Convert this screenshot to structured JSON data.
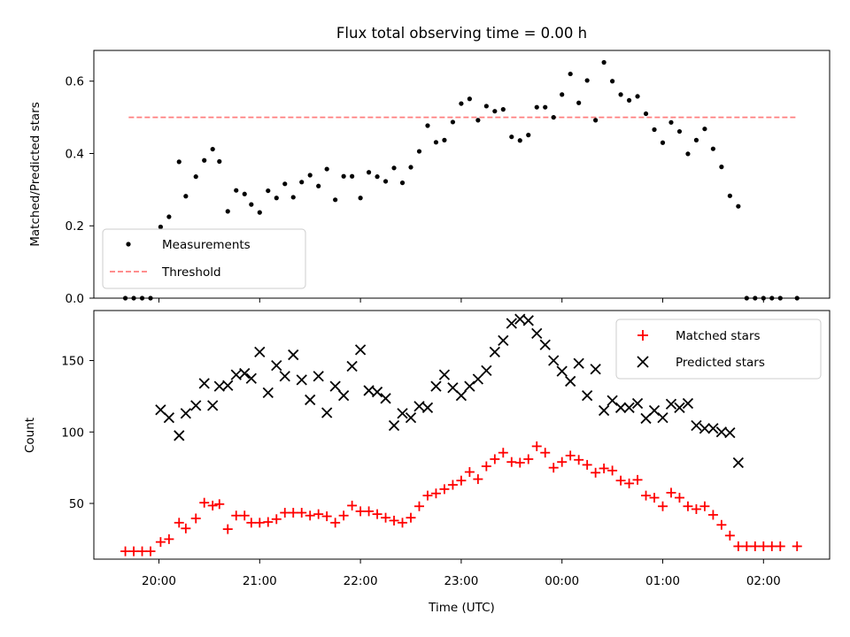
{
  "figure_title": "Flux total observing time = 0.00 h",
  "chart_data": [
    {
      "type": "scatter",
      "ylabel": "Matched/Predicted stars",
      "xlabel": "",
      "ylim": [
        0,
        0.685
      ],
      "yticks": [
        0.0,
        0.2,
        0.4,
        0.6
      ],
      "ytick_labels": [
        "0.0",
        "0.2",
        "0.4",
        "0.6"
      ],
      "grid": false,
      "legend_position": "lower-left",
      "series": [
        {
          "name": "Measurements",
          "kind": "scatter",
          "marker": "dot",
          "color": "#000000",
          "points": [
            [
              "19:40",
              0.0
            ],
            [
              "19:45",
              0.0
            ],
            [
              "19:50",
              0.0
            ],
            [
              "19:55",
              0.0
            ],
            [
              "20:01",
              0.197
            ],
            [
              "20:06",
              0.225
            ],
            [
              "20:12",
              0.377
            ],
            [
              "20:16",
              0.282
            ],
            [
              "20:22",
              0.336
            ],
            [
              "20:27",
              0.381
            ],
            [
              "20:32",
              0.412
            ],
            [
              "20:36",
              0.378
            ],
            [
              "20:41",
              0.24
            ],
            [
              "20:46",
              0.298
            ],
            [
              "20:51",
              0.288
            ],
            [
              "20:55",
              0.259
            ],
            [
              "21:00",
              0.237
            ],
            [
              "21:05",
              0.297
            ],
            [
              "21:10",
              0.277
            ],
            [
              "21:15",
              0.316
            ],
            [
              "21:20",
              0.279
            ],
            [
              "21:25",
              0.321
            ],
            [
              "21:30",
              0.34
            ],
            [
              "21:35",
              0.31
            ],
            [
              "21:40",
              0.357
            ],
            [
              "21:45",
              0.272
            ],
            [
              "21:50",
              0.337
            ],
            [
              "21:55",
              0.337
            ],
            [
              "22:00",
              0.277
            ],
            [
              "22:05",
              0.348
            ],
            [
              "22:10",
              0.336
            ],
            [
              "22:15",
              0.323
            ],
            [
              "22:20",
              0.36
            ],
            [
              "22:25",
              0.319
            ],
            [
              "22:30",
              0.362
            ],
            [
              "22:35",
              0.406
            ],
            [
              "22:40",
              0.477
            ],
            [
              "22:45",
              0.431
            ],
            [
              "22:50",
              0.437
            ],
            [
              "22:55",
              0.487
            ],
            [
              "23:00",
              0.538
            ],
            [
              "23:05",
              0.551
            ],
            [
              "23:10",
              0.492
            ],
            [
              "23:15",
              0.531
            ],
            [
              "23:20",
              0.517
            ],
            [
              "23:25",
              0.522
            ],
            [
              "23:30",
              0.446
            ],
            [
              "23:35",
              0.436
            ],
            [
              "23:40",
              0.451
            ],
            [
              "23:45",
              0.528
            ],
            [
              "23:50",
              0.528
            ],
            [
              "23:55",
              0.5
            ],
            [
              "00:00",
              0.563
            ],
            [
              "00:05",
              0.62
            ],
            [
              "00:10",
              0.54
            ],
            [
              "00:15",
              0.602
            ],
            [
              "00:20",
              0.492
            ],
            [
              "00:25",
              0.652
            ],
            [
              "00:30",
              0.6
            ],
            [
              "00:35",
              0.563
            ],
            [
              "00:40",
              0.547
            ],
            [
              "00:45",
              0.558
            ],
            [
              "00:50",
              0.51
            ],
            [
              "00:55",
              0.466
            ],
            [
              "01:00",
              0.43
            ],
            [
              "01:05",
              0.486
            ],
            [
              "01:10",
              0.461
            ],
            [
              "01:15",
              0.399
            ],
            [
              "01:20",
              0.437
            ],
            [
              "01:25",
              0.468
            ],
            [
              "01:30",
              0.413
            ],
            [
              "01:35",
              0.363
            ],
            [
              "01:40",
              0.283
            ],
            [
              "01:45",
              0.254
            ],
            [
              "01:50",
              0.0
            ],
            [
              "01:55",
              0.0
            ],
            [
              "02:00",
              0.0
            ],
            [
              "02:05",
              0.0
            ],
            [
              "02:10",
              0.0
            ],
            [
              "02:20",
              0.0
            ]
          ]
        },
        {
          "name": "Threshold",
          "kind": "line",
          "style": "dashed",
          "color": "#ff7f7f",
          "points": [
            [
              "19:42",
              0.5
            ],
            [
              "02:20",
              0.5
            ]
          ]
        }
      ]
    },
    {
      "type": "scatter",
      "ylabel": "Count",
      "xlabel": "Time (UTC)",
      "ylim": [
        11,
        185
      ],
      "yticks": [
        50,
        100,
        150
      ],
      "ytick_labels": [
        "50",
        "100",
        "150"
      ],
      "x_ticks": [
        "20:00",
        "21:00",
        "22:00",
        "23:00",
        "00:00",
        "01:00",
        "02:00"
      ],
      "grid": false,
      "legend_position": "top-right",
      "series": [
        {
          "name": "Matched stars",
          "kind": "scatter",
          "marker": "plus",
          "color": "#ff0000",
          "points": [
            [
              "19:40",
              16.5
            ],
            [
              "19:45",
              16.5
            ],
            [
              "19:50",
              16.5
            ],
            [
              "19:55",
              16.5
            ],
            [
              "20:01",
              23
            ],
            [
              "20:06",
              25
            ],
            [
              "20:12",
              36.5
            ],
            [
              "20:16",
              32.5
            ],
            [
              "20:22",
              39.5
            ],
            [
              "20:27",
              50.5
            ],
            [
              "20:32",
              48.5
            ],
            [
              "20:36",
              49.5
            ],
            [
              "20:41",
              32
            ],
            [
              "20:46",
              41.5
            ],
            [
              "20:51",
              41.5
            ],
            [
              "20:55",
              36.5
            ],
            [
              "21:00",
              36.5
            ],
            [
              "21:05",
              37
            ],
            [
              "21:10",
              39
            ],
            [
              "21:15",
              43.5
            ],
            [
              "21:20",
              43.5
            ],
            [
              "21:25",
              43.5
            ],
            [
              "21:30",
              41.5
            ],
            [
              "21:35",
              42.5
            ],
            [
              "21:40",
              41
            ],
            [
              "21:45",
              36.5
            ],
            [
              "21:50",
              41.5
            ],
            [
              "21:55",
              48.5
            ],
            [
              "22:00",
              44.5
            ],
            [
              "22:05",
              44.5
            ],
            [
              "22:10",
              42.5
            ],
            [
              "22:15",
              40
            ],
            [
              "22:20",
              38
            ],
            [
              "22:25",
              36.5
            ],
            [
              "22:30",
              40
            ],
            [
              "22:35",
              48
            ],
            [
              "22:40",
              55.5
            ],
            [
              "22:45",
              57
            ],
            [
              "22:50",
              60
            ],
            [
              "22:55",
              63
            ],
            [
              "23:00",
              66
            ],
            [
              "23:05",
              72
            ],
            [
              "23:10",
              67
            ],
            [
              "23:15",
              76
            ],
            [
              "23:20",
              81
            ],
            [
              "23:25",
              85.5
            ],
            [
              "23:30",
              79
            ],
            [
              "23:35",
              78.5
            ],
            [
              "23:40",
              81
            ],
            [
              "23:45",
              90
            ],
            [
              "23:50",
              85.5
            ],
            [
              "23:55",
              75
            ],
            [
              "00:00",
              79
            ],
            [
              "00:05",
              83.5
            ],
            [
              "00:10",
              80.5
            ],
            [
              "00:15",
              77
            ],
            [
              "00:20",
              71.5
            ],
            [
              "00:25",
              74.5
            ],
            [
              "00:30",
              73
            ],
            [
              "00:35",
              66
            ],
            [
              "00:40",
              64
            ],
            [
              "00:45",
              66.5
            ],
            [
              "00:50",
              55.5
            ],
            [
              "00:55",
              54
            ],
            [
              "01:00",
              48
            ],
            [
              "01:05",
              57.5
            ],
            [
              "01:10",
              54
            ],
            [
              "01:15",
              48
            ],
            [
              "01:20",
              46
            ],
            [
              "01:25",
              48
            ],
            [
              "01:30",
              42
            ],
            [
              "01:35",
              35
            ],
            [
              "01:40",
              27.5
            ],
            [
              "01:45",
              20
            ],
            [
              "01:50",
              20
            ],
            [
              "01:55",
              20
            ],
            [
              "02:00",
              20
            ],
            [
              "02:05",
              20
            ],
            [
              "02:10",
              20
            ],
            [
              "02:20",
              20
            ]
          ]
        },
        {
          "name": "Predicted stars",
          "kind": "scatter",
          "marker": "x",
          "color": "#000000",
          "points": [
            [
              "20:01",
              115.5
            ],
            [
              "20:06",
              110
            ],
            [
              "20:12",
              97.5
            ],
            [
              "20:16",
              113
            ],
            [
              "20:22",
              118.5
            ],
            [
              "20:27",
              134
            ],
            [
              "20:32",
              118.5
            ],
            [
              "20:36",
              132
            ],
            [
              "20:41",
              132.5
            ],
            [
              "20:46",
              140
            ],
            [
              "20:51",
              141
            ],
            [
              "20:55",
              137.5
            ],
            [
              "21:00",
              156
            ],
            [
              "21:05",
              127.5
            ],
            [
              "21:10",
              146.5
            ],
            [
              "21:15",
              139
            ],
            [
              "21:20",
              154
            ],
            [
              "21:25",
              136.5
            ],
            [
              "21:30",
              122.5
            ],
            [
              "21:35",
              139
            ],
            [
              "21:40",
              113.5
            ],
            [
              "21:45",
              132
            ],
            [
              "21:50",
              125.5
            ],
            [
              "21:55",
              146
            ],
            [
              "22:00",
              157.5
            ],
            [
              "22:05",
              129
            ],
            [
              "22:10",
              128
            ],
            [
              "22:15",
              123.5
            ],
            [
              "22:20",
              104.5
            ],
            [
              "22:25",
              113
            ],
            [
              "22:30",
              110
            ],
            [
              "22:35",
              118
            ],
            [
              "22:40",
              117
            ],
            [
              "22:45",
              132
            ],
            [
              "22:50",
              140
            ],
            [
              "22:55",
              131
            ],
            [
              "23:00",
              125.5
            ],
            [
              "23:05",
              132
            ],
            [
              "23:10",
              137
            ],
            [
              "23:15",
              143
            ],
            [
              "23:20",
              156
            ],
            [
              "23:25",
              164
            ],
            [
              "23:30",
              176
            ],
            [
              "23:35",
              179
            ],
            [
              "23:40",
              178
            ],
            [
              "23:45",
              169
            ],
            [
              "23:50",
              161
            ],
            [
              "23:55",
              150
            ],
            [
              "00:00",
              142.5
            ],
            [
              "00:05",
              135.5
            ],
            [
              "00:10",
              148
            ],
            [
              "00:15",
              125.5
            ],
            [
              "00:20",
              144
            ],
            [
              "00:25",
              115
            ],
            [
              "00:30",
              122
            ],
            [
              "00:35",
              117
            ],
            [
              "00:40",
              117
            ],
            [
              "00:45",
              120
            ],
            [
              "00:50",
              109.5
            ],
            [
              "00:55",
              115
            ],
            [
              "01:00",
              110
            ],
            [
              "01:05",
              119.5
            ],
            [
              "01:10",
              117
            ],
            [
              "01:15",
              120
            ],
            [
              "01:20",
              104.5
            ],
            [
              "01:25",
              102.5
            ],
            [
              "01:30",
              102.5
            ],
            [
              "01:35",
              100
            ],
            [
              "01:40",
              99.5
            ],
            [
              "01:45",
              78.5
            ]
          ]
        }
      ]
    }
  ]
}
